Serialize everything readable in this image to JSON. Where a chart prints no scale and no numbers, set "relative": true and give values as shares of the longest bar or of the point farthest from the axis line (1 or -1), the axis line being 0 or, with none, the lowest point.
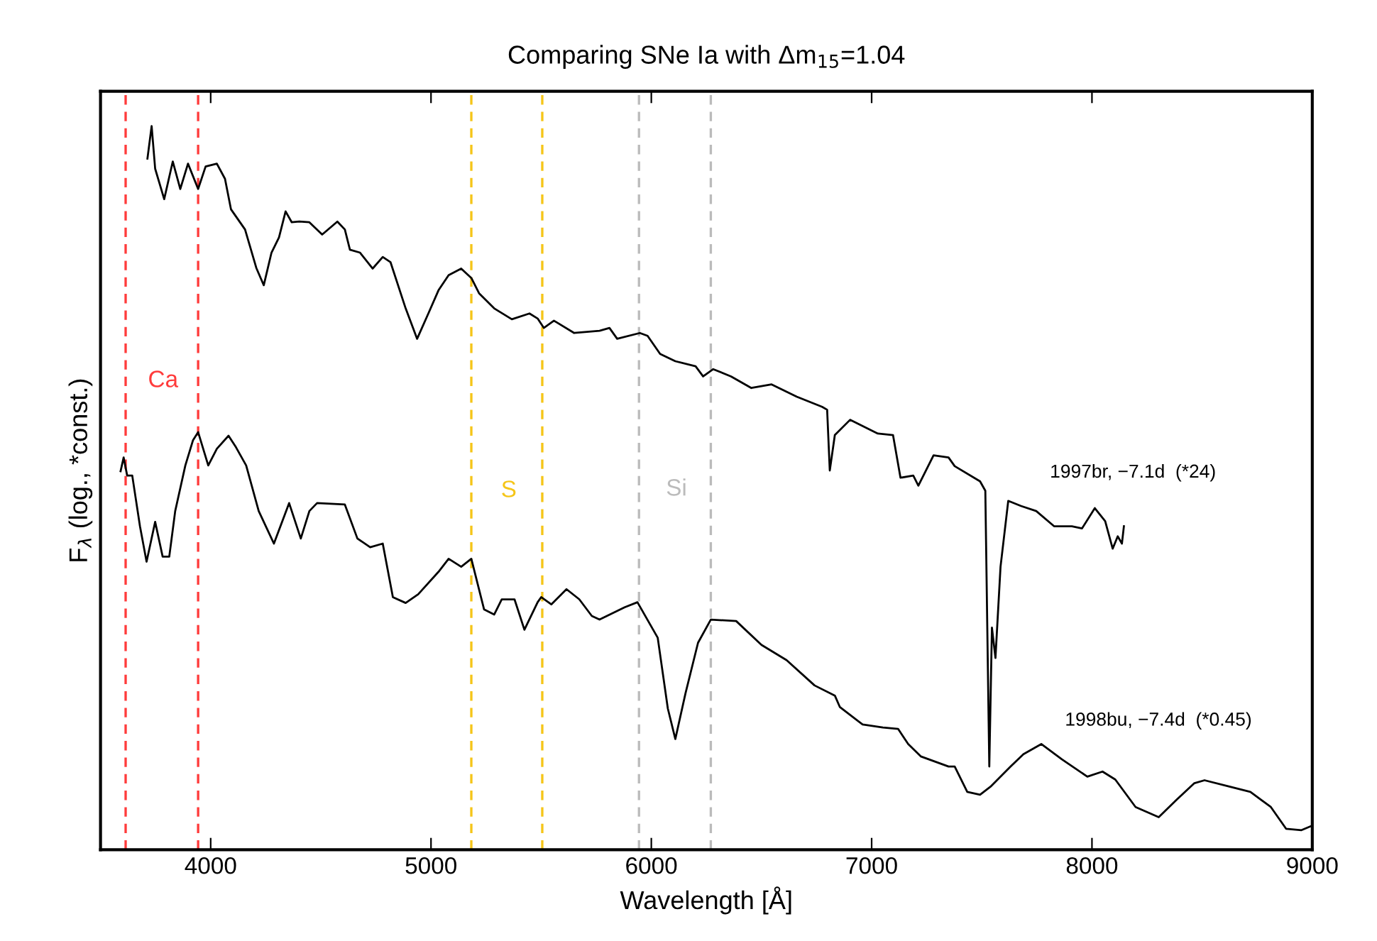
{
  "chart_data": {
    "type": "line",
    "title": "Comparing SNe Ia with Δm$_{15}$=1.04",
    "xlabel": "Wavelength [Å]",
    "ylabel": "F$_{λ}$ (log., *const.)",
    "relative": true,
    "xlim": [
      3500,
      9000
    ],
    "xticks": [
      4000,
      5000,
      6000,
      7000,
      8000,
      9000
    ],
    "grid": false,
    "legend": false,
    "series": [
      {
        "name": "1997br, −7.1d  (*24)",
        "color": "#000000",
        "x": [
          3713,
          3732,
          3748,
          3789,
          3828,
          3862,
          3897,
          3943,
          3977,
          4028,
          4065,
          4092,
          4156,
          4207,
          4241,
          4276,
          4310,
          4340,
          4368,
          4402,
          4448,
          4506,
          4575,
          4609,
          4632,
          4678,
          4735,
          4781,
          4816,
          4885,
          4937,
          4988,
          5034,
          5080,
          5137,
          5183,
          5218,
          5287,
          5367,
          5447,
          5484,
          5512,
          5558,
          5650,
          5765,
          5810,
          5845,
          5948,
          5983,
          6040,
          6109,
          6201,
          6235,
          6281,
          6362,
          6454,
          6546,
          6660,
          6775,
          6798,
          6810,
          6833,
          6902,
          7028,
          7097,
          7131,
          7189,
          7212,
          7281,
          7349,
          7377,
          7492,
          7516,
          7534,
          7546,
          7562,
          7585,
          7620,
          7678,
          7747,
          7828,
          7909,
          7955,
          8013,
          8060,
          8094,
          8117,
          8136,
          8145
        ],
        "values": [
          0.955,
          1.0,
          0.941,
          0.899,
          0.951,
          0.913,
          0.948,
          0.913,
          0.944,
          0.948,
          0.927,
          0.885,
          0.857,
          0.804,
          0.78,
          0.825,
          0.846,
          0.882,
          0.867,
          0.868,
          0.867,
          0.85,
          0.868,
          0.857,
          0.829,
          0.825,
          0.803,
          0.819,
          0.812,
          0.748,
          0.706,
          0.741,
          0.773,
          0.794,
          0.803,
          0.79,
          0.769,
          0.748,
          0.733,
          0.741,
          0.734,
          0.721,
          0.731,
          0.714,
          0.717,
          0.721,
          0.706,
          0.714,
          0.71,
          0.685,
          0.675,
          0.668,
          0.654,
          0.664,
          0.654,
          0.638,
          0.643,
          0.626,
          0.612,
          0.608,
          0.524,
          0.573,
          0.594,
          0.575,
          0.573,
          0.514,
          0.517,
          0.503,
          0.545,
          0.542,
          0.53,
          0.509,
          0.496,
          0.115,
          0.307,
          0.265,
          0.391,
          0.482,
          0.475,
          0.468,
          0.447,
          0.447,
          0.444,
          0.472,
          0.454,
          0.416,
          0.433,
          0.423,
          0.447
        ]
      },
      {
        "name": "1998bu, −7.4d  (*0.45)",
        "color": "#000000",
        "x": [
          3591,
          3605,
          3621,
          3644,
          3679,
          3709,
          3748,
          3782,
          3812,
          3839,
          3885,
          3920,
          3943,
          3989,
          4028,
          4081,
          4115,
          4161,
          4218,
          4287,
          4356,
          4409,
          4448,
          4483,
          4609,
          4666,
          4724,
          4781,
          4827,
          4885,
          4942,
          5034,
          5080,
          5137,
          5183,
          5241,
          5287,
          5321,
          5379,
          5424,
          5484,
          5500,
          5546,
          5615,
          5673,
          5730,
          5765,
          5879,
          5937,
          6029,
          6075,
          6109,
          6155,
          6212,
          6270,
          6385,
          6500,
          6614,
          6741,
          6833,
          6856,
          6959,
          7051,
          7120,
          7166,
          7223,
          7349,
          7377,
          7434,
          7492,
          7539,
          7631,
          7689,
          7770,
          7863,
          7979,
          8048,
          8106,
          8198,
          8303,
          8384,
          8465,
          8511,
          8627,
          8719,
          8812,
          8881,
          8951,
          8997
        ],
        "values": [
          0.523,
          0.542,
          0.517,
          0.517,
          0.447,
          0.398,
          0.453,
          0.405,
          0.405,
          0.468,
          0.531,
          0.566,
          0.577,
          0.531,
          0.554,
          0.572,
          0.556,
          0.531,
          0.468,
          0.423,
          0.479,
          0.43,
          0.468,
          0.479,
          0.477,
          0.43,
          0.418,
          0.423,
          0.349,
          0.341,
          0.353,
          0.384,
          0.402,
          0.391,
          0.402,
          0.332,
          0.325,
          0.346,
          0.346,
          0.304,
          0.342,
          0.349,
          0.339,
          0.36,
          0.346,
          0.323,
          0.318,
          0.335,
          0.342,
          0.293,
          0.195,
          0.153,
          0.216,
          0.286,
          0.318,
          0.316,
          0.283,
          0.262,
          0.227,
          0.213,
          0.197,
          0.173,
          0.169,
          0.167,
          0.146,
          0.129,
          0.115,
          0.115,
          0.08,
          0.076,
          0.087,
          0.115,
          0.132,
          0.146,
          0.125,
          0.101,
          0.108,
          0.097,
          0.059,
          0.045,
          0.069,
          0.092,
          0.096,
          0.087,
          0.08,
          0.059,
          0.029,
          0.027,
          0.033
        ]
      }
    ],
    "ref_lines": [
      {
        "axis": "x",
        "value": 3614,
        "color": "#ff3b3b",
        "line_style": "dashed",
        "label": "Ca"
      },
      {
        "axis": "x",
        "value": 3943,
        "color": "#ff3b3b",
        "line_style": "dashed"
      },
      {
        "axis": "x",
        "value": 5183,
        "color": "#f5c518",
        "line_style": "dashed",
        "label": "S"
      },
      {
        "axis": "x",
        "value": 5505,
        "color": "#f5c518",
        "line_style": "dashed"
      },
      {
        "axis": "x",
        "value": 5944,
        "color": "#bbbbbb",
        "line_style": "dashed",
        "label": "Si"
      },
      {
        "axis": "x",
        "value": 6270,
        "color": "#bbbbbb",
        "line_style": "dashed"
      }
    ]
  }
}
